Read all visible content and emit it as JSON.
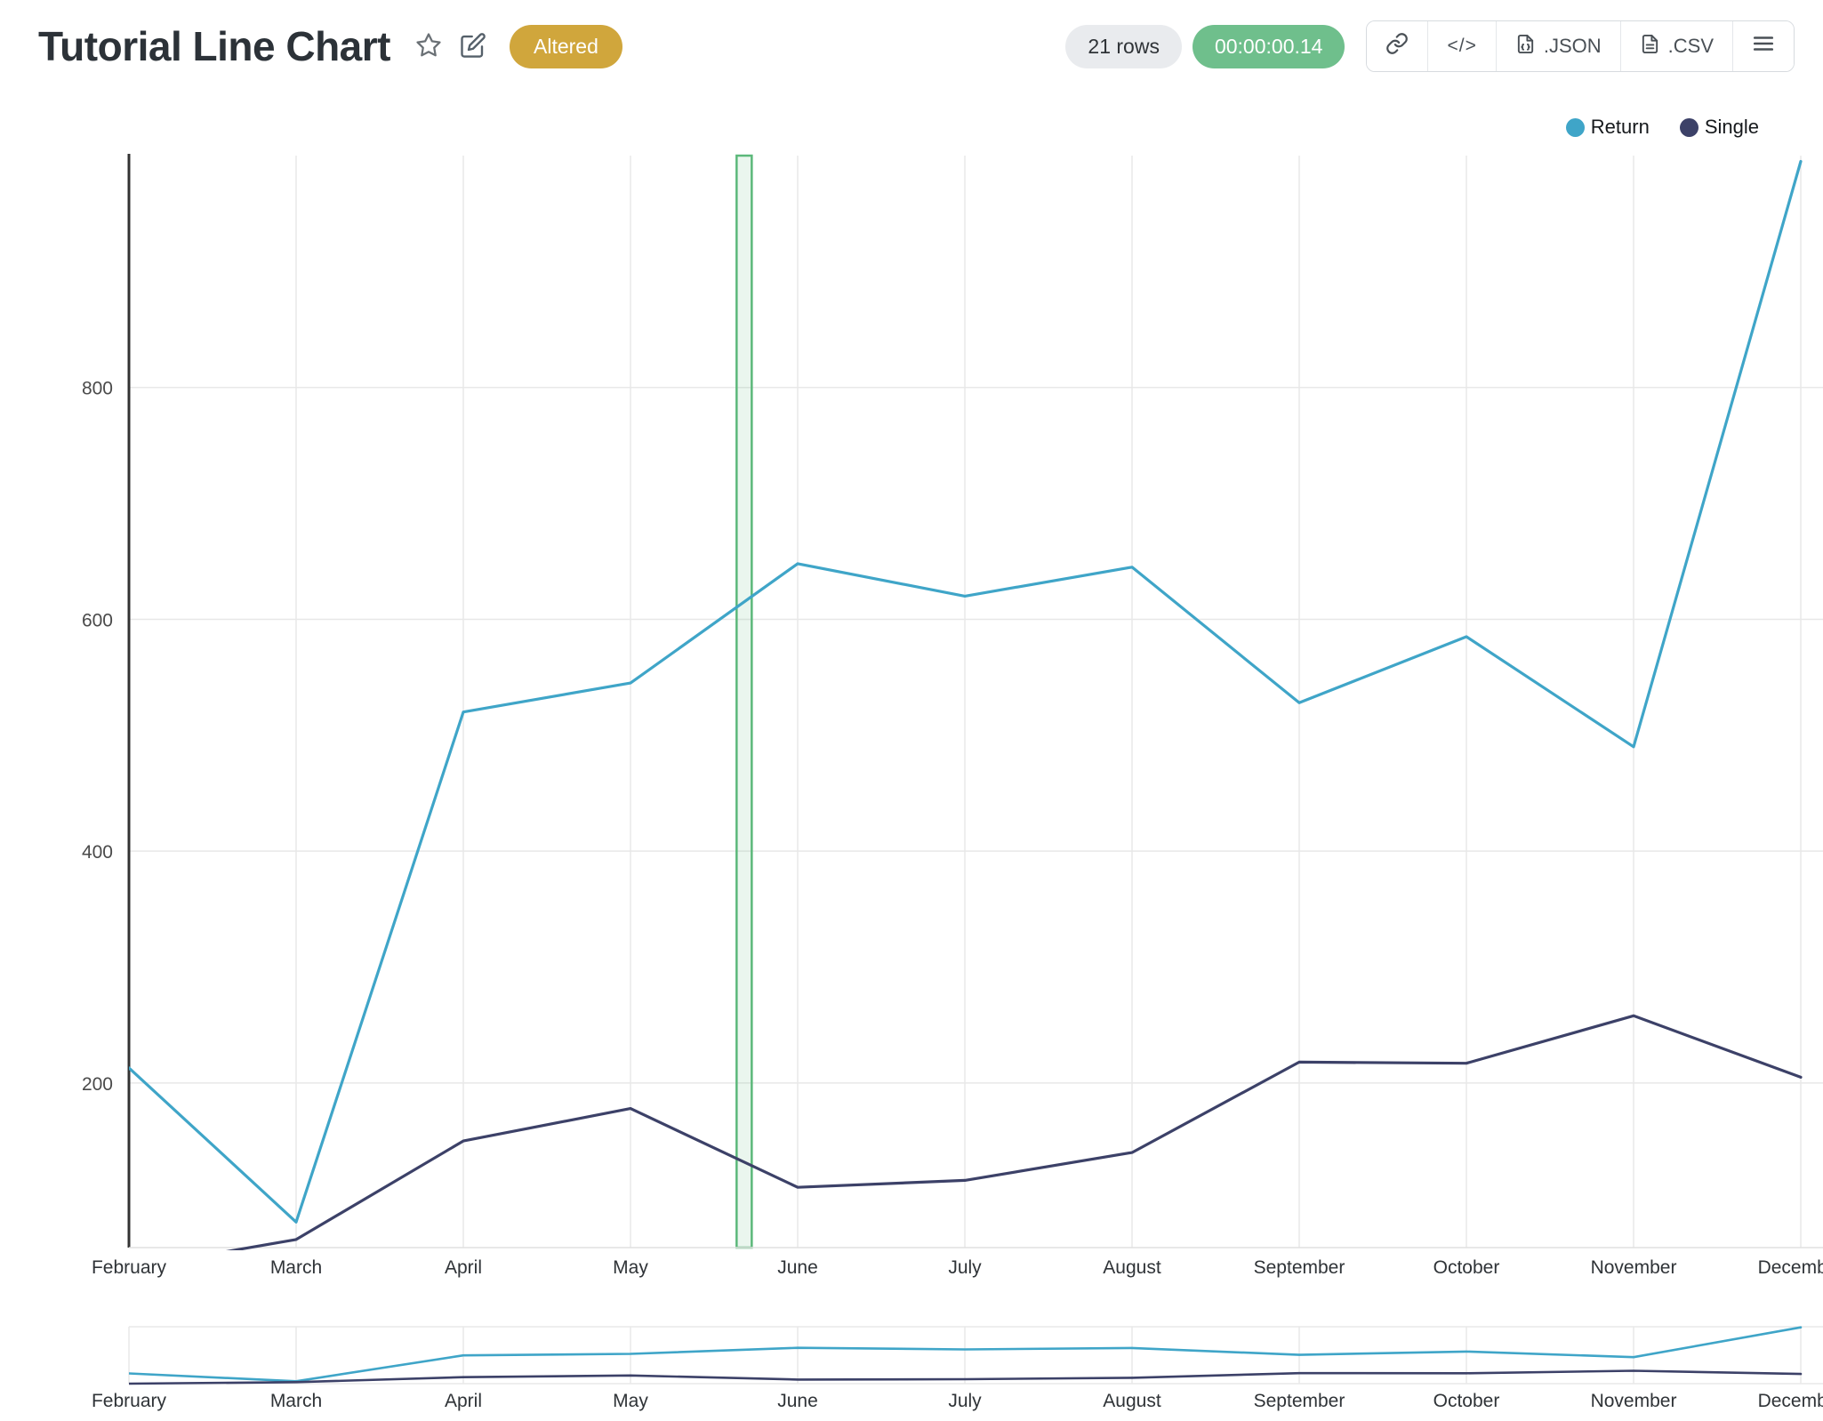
{
  "header": {
    "title": "Tutorial Line Chart",
    "badge": "Altered",
    "stats": {
      "rows": "21 rows",
      "elapsed": "00:00:00.14"
    },
    "actions": {
      "embed": "</>",
      "json": ".JSON",
      "csv": ".CSV"
    }
  },
  "icons": {
    "favorite": "star-icon",
    "edit": "edit-pencil-icon",
    "share": "link-icon",
    "embed": "code-icon",
    "export_json": "json-file-icon",
    "export_csv": "csv-file-icon",
    "menu": "hamburger-menu-icon"
  },
  "colors": {
    "badge": "#d0a63c",
    "timer_bg": "#6fbf8c",
    "annotation": "#5cb87a",
    "grid": "#e8e8e8",
    "axis": "#333333"
  },
  "legend": {
    "items": [
      {
        "label": "Return",
        "color": "#3fa5c8"
      },
      {
        "label": "Single",
        "color": "#3c4168"
      }
    ]
  },
  "chart_data": {
    "type": "line",
    "title": "Tutorial Line Chart",
    "categories": [
      "February",
      "March",
      "April",
      "May",
      "June",
      "July",
      "August",
      "September",
      "October",
      "November",
      "December"
    ],
    "series": [
      {
        "name": "Return",
        "color": "#3fa5c8",
        "values": [
          213,
          80,
          520,
          545,
          648,
          620,
          645,
          528,
          585,
          490,
          995
        ]
      },
      {
        "name": "Single",
        "color": "#3c4168",
        "values": [
          40,
          65,
          150,
          178,
          110,
          116,
          140,
          218,
          217,
          258,
          205
        ]
      }
    ],
    "yticks": [
      200,
      400,
      600,
      800
    ],
    "ylim": [
      58,
      1000
    ],
    "xlabel": "",
    "ylabel": "",
    "grid": true,
    "legend_position": "top-right",
    "annotations": [
      {
        "type": "vertical-band",
        "x_index": 3.68,
        "color": "#5cb87a"
      }
    ],
    "mini_map": {
      "ylim": [
        40,
        1005
      ]
    }
  }
}
